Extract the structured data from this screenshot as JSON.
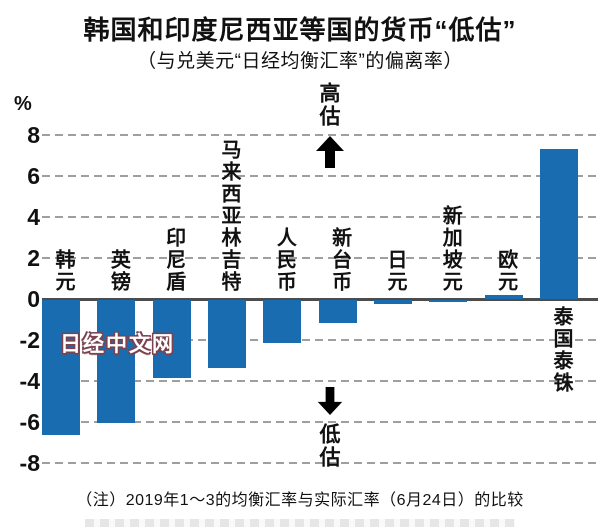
{
  "title": "韩国和印度尼西亚等国的货币“低估”",
  "subtitle": "（与兑美元“日经均衡汇率”的偏离率）",
  "note": "（注）2019年1～3的均衡汇率与实际汇率（6月24日）的比较",
  "watermark": "日经中文网",
  "annotations": {
    "overvalued": "高估",
    "undervalued": "低估"
  },
  "colors": {
    "bar": "#1a6cb0",
    "grid": "#9f9f9f",
    "zero_line": "#4c4c4c",
    "text": "#111111",
    "watermark_outline": "#7b4350"
  },
  "chart_data": {
    "type": "bar",
    "title": "韩国和印度尼西亚等国的货币“低估”",
    "subtitle": "（与兑美元“日经均衡汇率”的偏离率）",
    "unit_label": "%",
    "categories": [
      "韩元",
      "英镑",
      "印尼盾",
      "马来西亚林吉特",
      "人民币",
      "新台币",
      "日元",
      "新加坡元",
      "欧元",
      "泰国泰铢"
    ],
    "values": [
      -6.6,
      -6.0,
      -3.8,
      -3.3,
      -2.1,
      -1.1,
      -0.2,
      -0.1,
      0.2,
      7.3
    ],
    "ylim": [
      -8,
      8
    ],
    "yticks": [
      8,
      6,
      4,
      2,
      0,
      -2,
      -4,
      -6,
      -8
    ],
    "grid": "dashed horizontal gridlines, solid zero baseline",
    "legend": "none",
    "bar_color": "#1a6cb0",
    "positive_annotation": "高估 (overvalued, up arrow)",
    "negative_annotation": "低估 (undervalued, down arrow)"
  }
}
